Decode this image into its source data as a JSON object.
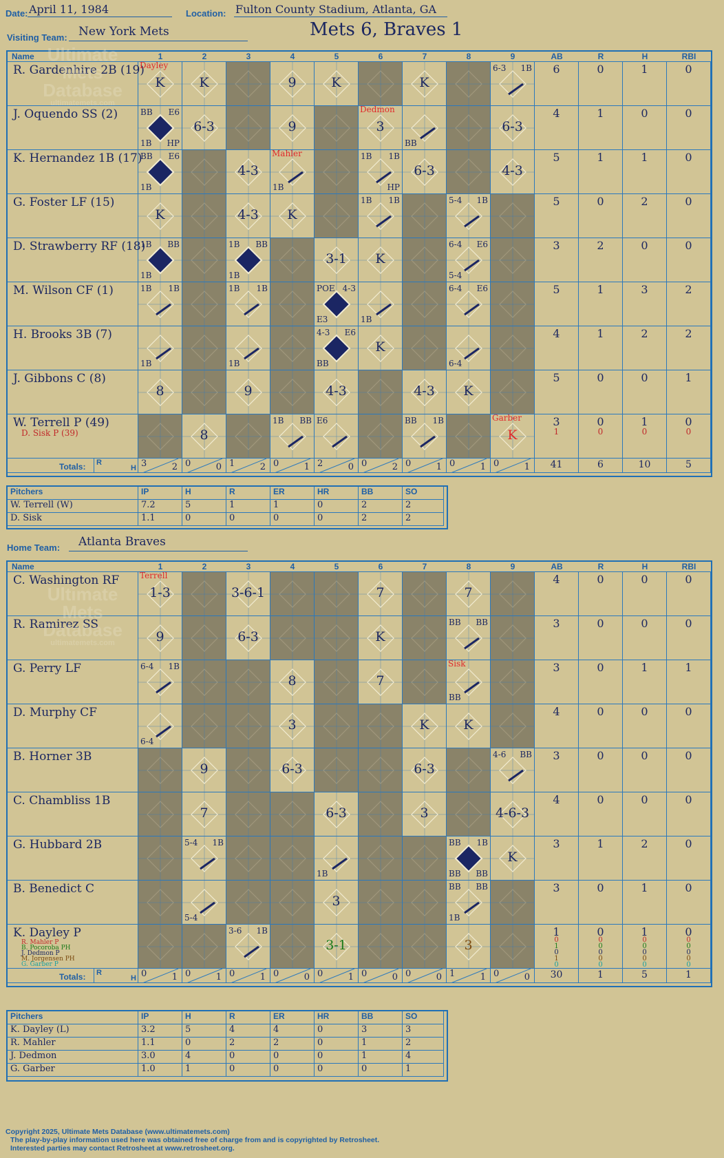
{
  "header": {
    "date_label": "Date:",
    "date": "April 11, 1984",
    "location_label": "Location:",
    "location": "Fulton County Stadium, Atlanta, GA",
    "result": "Mets 6, Braves 1"
  },
  "watermark": {
    "line1": "Ultimate",
    "line2": "Mets",
    "line3": "Database",
    "line4": "ultimatemets.com"
  },
  "visitors": {
    "team_label": "Visiting Team:",
    "team": "New York Mets",
    "name_header": "Name",
    "innings": [
      "1",
      "2",
      "3",
      "4",
      "5",
      "6",
      "7",
      "8",
      "9"
    ],
    "stat_headers": [
      "AB",
      "R",
      "H",
      "RBI"
    ],
    "players": [
      {
        "name": "R. Gardenhire 2B (19)",
        "stats": [
          "6",
          "0",
          "1",
          "0"
        ]
      },
      {
        "name": "J. Oquendo SS (2)",
        "stats": [
          "4",
          "1",
          "0",
          "0"
        ]
      },
      {
        "name": "K. Hernandez 1B (17)",
        "stats": [
          "5",
          "1",
          "1",
          "0"
        ]
      },
      {
        "name": "G. Foster LF (15)",
        "stats": [
          "5",
          "0",
          "2",
          "0"
        ]
      },
      {
        "name": "D. Strawberry RF (18)",
        "stats": [
          "3",
          "2",
          "0",
          "0"
        ]
      },
      {
        "name": "M. Wilson CF (1)",
        "stats": [
          "5",
          "1",
          "3",
          "2"
        ]
      },
      {
        "name": "H. Brooks 3B (7)",
        "stats": [
          "4",
          "1",
          "2",
          "2"
        ]
      },
      {
        "name": "J. Gibbons C (8)",
        "stats": [
          "5",
          "0",
          "0",
          "1"
        ]
      },
      {
        "name": "W. Terrell P (49)",
        "sub": "D. Sisk P (39)",
        "stats": [
          "3",
          "0",
          "1",
          "0"
        ],
        "sub_stats": [
          "1",
          "0",
          "0",
          "0"
        ]
      }
    ],
    "totals_label": "Totals:",
    "rh_r": "R",
    "rh_h": "H",
    "inning_totals": [
      [
        "3",
        "2"
      ],
      [
        "0",
        "0"
      ],
      [
        "1",
        "2"
      ],
      [
        "0",
        "1"
      ],
      [
        "2",
        "0"
      ],
      [
        "0",
        "2"
      ],
      [
        "0",
        "1"
      ],
      [
        "0",
        "1"
      ],
      [
        "0",
        "1"
      ]
    ],
    "game_totals": [
      "41",
      "6",
      "10",
      "5"
    ]
  },
  "visitor_pitchers": {
    "headers": [
      "Pitchers",
      "IP",
      "H",
      "R",
      "ER",
      "HR",
      "BB",
      "SO"
    ],
    "rows": [
      [
        "W. Terrell (W)",
        "7.2",
        "5",
        "1",
        "1",
        "0",
        "2",
        "2"
      ],
      [
        "D. Sisk",
        "1.1",
        "0",
        "0",
        "0",
        "0",
        "2",
        "2"
      ]
    ]
  },
  "home": {
    "team_label": "Home Team:",
    "team": "Atlanta Braves",
    "name_header": "Name",
    "innings": [
      "1",
      "2",
      "3",
      "4",
      "5",
      "6",
      "7",
      "8",
      "9"
    ],
    "stat_headers": [
      "AB",
      "R",
      "H",
      "RBI"
    ],
    "players": [
      {
        "name": "C. Washington RF",
        "stats": [
          "4",
          "0",
          "0",
          "0"
        ]
      },
      {
        "name": "R. Ramirez SS",
        "stats": [
          "3",
          "0",
          "0",
          "0"
        ]
      },
      {
        "name": "G. Perry LF",
        "stats": [
          "3",
          "0",
          "1",
          "1"
        ]
      },
      {
        "name": "D. Murphy CF",
        "stats": [
          "4",
          "0",
          "0",
          "0"
        ]
      },
      {
        "name": "B. Horner 3B",
        "stats": [
          "3",
          "0",
          "0",
          "0"
        ]
      },
      {
        "name": "C. Chambliss 1B",
        "stats": [
          "4",
          "0",
          "0",
          "0"
        ]
      },
      {
        "name": "G. Hubbard 2B",
        "stats": [
          "3",
          "1",
          "2",
          "0"
        ]
      },
      {
        "name": "B. Benedict C",
        "stats": [
          "3",
          "0",
          "1",
          "0"
        ]
      },
      {
        "name": "K. Dayley P",
        "stats": [
          "1",
          "0",
          "1",
          "0"
        ]
      }
    ],
    "subs": [
      "R. Mahler P",
      "B. Pocoroba PH",
      "J. Dedmon P",
      "M. Jorgensen PH",
      "G. Garber P"
    ],
    "sub_colors": [
      "#c0282a",
      "#1a7a1a",
      "#1c2760",
      "#7a4a10",
      "#18a0a0"
    ],
    "sub_stats": [
      [
        "0",
        "0",
        "0",
        "0"
      ],
      [
        "1",
        "0",
        "0",
        "0"
      ],
      [
        "0",
        "0",
        "0",
        "0"
      ],
      [
        "1",
        "0",
        "0",
        "0"
      ],
      [
        "0",
        "0",
        "0",
        "0"
      ]
    ],
    "totals_label": "Totals:",
    "rh_r": "R",
    "rh_h": "H",
    "inning_totals": [
      [
        "0",
        "1"
      ],
      [
        "0",
        "1"
      ],
      [
        "0",
        "1"
      ],
      [
        "0",
        "0"
      ],
      [
        "0",
        "1"
      ],
      [
        "0",
        "0"
      ],
      [
        "0",
        "0"
      ],
      [
        "1",
        "1"
      ],
      [
        "0",
        "0"
      ]
    ],
    "game_totals": [
      "30",
      "1",
      "5",
      "1"
    ]
  },
  "home_pitchers": {
    "headers": [
      "Pitchers",
      "IP",
      "H",
      "R",
      "ER",
      "HR",
      "BB",
      "SO"
    ],
    "rows": [
      [
        "K. Dayley (L)",
        "3.2",
        "5",
        "4",
        "4",
        "0",
        "3",
        "3"
      ],
      [
        "R. Mahler",
        "1.1",
        "0",
        "2",
        "2",
        "0",
        "1",
        "2"
      ],
      [
        "J. Dedmon",
        "3.0",
        "4",
        "0",
        "0",
        "0",
        "1",
        "4"
      ],
      [
        "G. Garber",
        "1.0",
        "1",
        "0",
        "0",
        "0",
        "0",
        "1"
      ]
    ]
  },
  "footer": {
    "line1": "Copyright 2025, Ultimate Mets Database (www.ultimatemets.com)",
    "line2": "The play-by-play information used here was obtained free of charge from and is copyrighted by Retrosheet.",
    "line3": "Interested parties may contact Retrosheet at www.retrosheet.org."
  },
  "visitor_cells": [
    [
      "K|||||Dayley",
      "K",
      "G",
      "9",
      "K",
      "G",
      "K",
      "G",
      "h|6-3|1B"
    ],
    [
      "D|BB|E6|1B|HP",
      "6-3",
      "G",
      "9",
      "G",
      "3|||||Dedmon",
      "h|||BB",
      "G",
      "6-3"
    ],
    [
      "D|BB|E6|1B",
      "G",
      "4-3",
      "h|||1B||Mahler",
      "G",
      "h|1B|1B||HP",
      "6-3",
      "G",
      "4-3"
    ],
    [
      "K",
      "G",
      "4-3",
      "K",
      "G",
      "h|1B|1B",
      "G",
      "h|5-4|1B",
      "G"
    ],
    [
      "D|1B|BB|1B",
      "G",
      "D|1B|BB|1B",
      "G",
      "3-1",
      "K",
      "G",
      "h|6-4|E6|5-4",
      "G"
    ],
    [
      "h|1B|1B",
      "G",
      "h|1B|1B",
      "G",
      "D|POE|4-3|E3",
      "h|||1B",
      "G",
      "h|6-4|E6",
      "G"
    ],
    [
      "h|||1B",
      "G",
      "h|||1B",
      "G",
      "D|4-3|E6|BB",
      "K",
      "G",
      "h|||6-4",
      "G"
    ],
    [
      "8",
      "G",
      "9",
      "G",
      "4-3",
      "G",
      "4-3",
      "K",
      "G"
    ],
    [
      "G",
      "8",
      "G",
      "h|1B|BB",
      "h|E6",
      "G",
      "h|BB|1B",
      "G",
      "KR|||||Garber"
    ]
  ],
  "home_cells": [
    [
      "1-3|||||Terrell",
      "G",
      "3-6-1",
      "G",
      "G",
      "7",
      "G",
      "7",
      "G"
    ],
    [
      "9",
      "G",
      "6-3",
      "G",
      "G",
      "K",
      "G",
      "h|BB|BB",
      "G"
    ],
    [
      "h|6-4|1B",
      "G",
      "G",
      "8",
      "G",
      "7",
      "G",
      "h|||BB||Sisk",
      "G"
    ],
    [
      "h|||6-4",
      "G",
      "G",
      "3",
      "G",
      "G",
      "K",
      "K",
      "G"
    ],
    [
      "G",
      "9",
      "G",
      "6-3",
      "G",
      "G",
      "6-3",
      "G",
      "h|4-6|BB"
    ],
    [
      "G",
      "7",
      "G",
      "G",
      "6-3",
      "G",
      "3",
      "G",
      "4-6-3"
    ],
    [
      "G",
      "h|5-4|1B",
      "G",
      "G",
      "h|||1B",
      "G",
      "G",
      "D|BB|1B|BB|BB",
      "K"
    ],
    [
      "G",
      "h|||5-4",
      "G",
      "G",
      "3",
      "G",
      "G",
      "h|BB|BB|1B",
      "G"
    ],
    [
      "G",
      "G",
      "h|3-6|1B",
      "G",
      "3-1g",
      "G",
      "G",
      "3b",
      "G"
    ]
  ]
}
